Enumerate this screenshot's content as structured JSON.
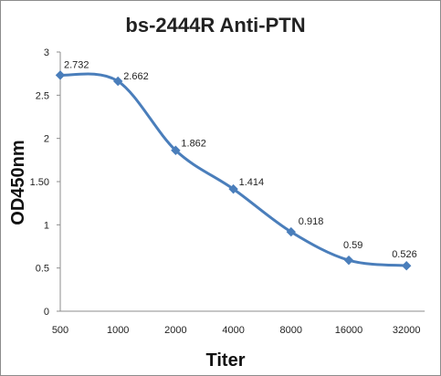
{
  "chart_data": {
    "type": "line",
    "title": "bs-2444R Anti-PTN",
    "xlabel": "Titer",
    "ylabel": "OD450nm",
    "categories": [
      "500",
      "1000",
      "2000",
      "4000",
      "8000",
      "16000",
      "32000"
    ],
    "series": [
      {
        "values": [
          2.732,
          2.662,
          1.862,
          1.414,
          0.918,
          0.59,
          0.526
        ],
        "data_labels": [
          "2.732",
          "2.662",
          "1.862",
          "1.414",
          "0.918",
          "0.59",
          "0.526"
        ]
      }
    ],
    "ylim": [
      0,
      3
    ],
    "yticks": [
      "0",
      "0.5",
      "1",
      "1.50",
      "2",
      "2.5",
      "3"
    ],
    "grid": false,
    "legend": "none",
    "line_color": "#4a7ebb",
    "marker": "diamond"
  }
}
